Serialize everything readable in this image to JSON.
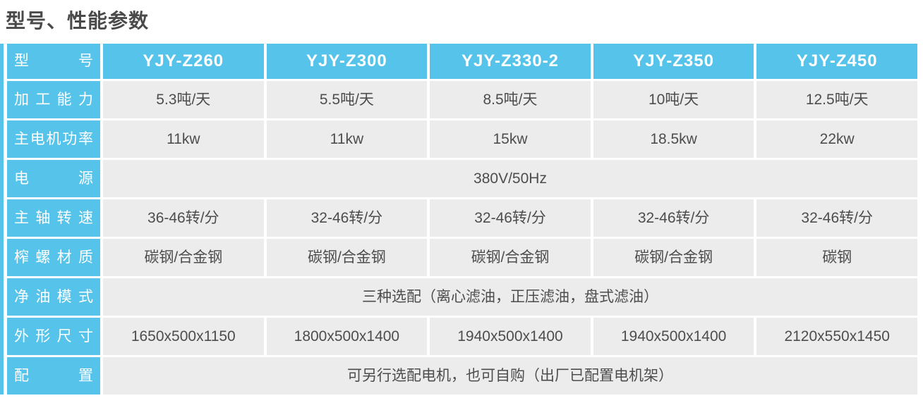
{
  "page_title": "型号、性能参数",
  "colors": {
    "accent_cyan": "#55C3EA",
    "data_cell_bg": "#ECECEC",
    "data_text": "#4D4D4D",
    "header_text": "#FFFFFF",
    "title_text": "#4A4A4A"
  },
  "table": {
    "header": {
      "label": "型号",
      "models": [
        "YJY-Z260",
        "YJY-Z300",
        "YJY-Z330-2",
        "YJY-Z350",
        "YJY-Z450"
      ]
    },
    "rows": [
      {
        "label": "加工能力",
        "values": [
          "5.3吨/天",
          "5.5吨/天",
          "8.5吨/天",
          "10吨/天",
          "12.5吨/天"
        ]
      },
      {
        "label": "主电机功率",
        "values": [
          "11kw",
          "11kw",
          "15kw",
          "18.5kw",
          "22kw"
        ]
      },
      {
        "label": "电源",
        "span_value": "380V/50Hz"
      },
      {
        "label": "主轴转速",
        "values": [
          "36-46转/分",
          "32-46转/分",
          "32-46转/分",
          "32-46转/分",
          "32-46转/分"
        ]
      },
      {
        "label": "榨螺材质",
        "values": [
          "碳钢/合金钢",
          "碳钢/合金钢",
          "碳钢/合金钢",
          "碳钢/合金钢",
          "碳钢"
        ]
      },
      {
        "label": "净油模式",
        "span_value": "三种选配（离心滤油，正压滤油，盘式滤油）"
      },
      {
        "label": "外形尺寸",
        "values": [
          "1650x500x1150",
          "1800x500x1400",
          "1940x500x1400",
          "1940x500x1400",
          "2120x550x1450"
        ]
      },
      {
        "label": "配置",
        "span_value": "可另行选配电机，也可自购（出厂已配置电机架）"
      }
    ]
  }
}
